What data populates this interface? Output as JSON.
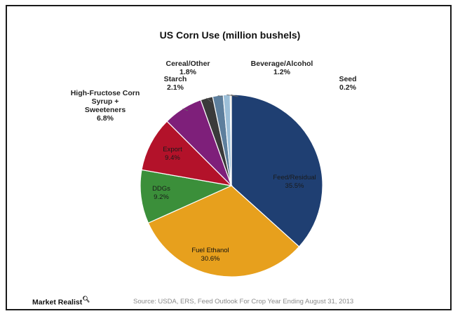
{
  "chart_data": {
    "type": "pie",
    "title": "US Corn Use (million bushels)",
    "slices": [
      {
        "label": "Feed/Residual",
        "display": "35.5%",
        "value": 35.5,
        "color": "#1f3f72",
        "label_fill": "#1a1a1a",
        "inside": true
      },
      {
        "label": "Fuel Ethanol",
        "display": "30.6%",
        "value": 30.6,
        "color": "#e7a01d",
        "label_fill": "#111111",
        "inside": true
      },
      {
        "label": "DDGs",
        "display": "9.2%",
        "value": 9.2,
        "color": "#3b8f3a",
        "label_fill": "#1a1a1a",
        "inside": true
      },
      {
        "label": "Export",
        "display": "9.4%",
        "value": 9.4,
        "color": "#b3122a",
        "label_fill": "#1a1a1a",
        "inside": true
      },
      {
        "label": "High-Fructose Corn Syrup + Sweeteners",
        "display": "6.8%",
        "value": 6.8,
        "color": "#7e1f7a",
        "inside": false
      },
      {
        "label": "Starch",
        "display": "2.1%",
        "value": 2.1,
        "color": "#3a3a3a",
        "inside": false
      },
      {
        "label": "Cereal/Other",
        "display": "1.8%",
        "value": 1.8,
        "color": "#5d7f9d",
        "inside": false
      },
      {
        "label": "Beverage/Alcohol",
        "display": "1.2%",
        "value": 1.2,
        "color": "#9cbfd8",
        "inside": false
      },
      {
        "label": "Seed",
        "display": "0.2%",
        "value": 0.2,
        "color": "#d7c49e",
        "inside": false
      }
    ]
  },
  "footer": {
    "brand": "Market Realist",
    "brand_icon": "magnifier-icon",
    "source": "Source: USDA, ERS, Feed Outlook  For Crop Year Ending August 31, 2013"
  }
}
